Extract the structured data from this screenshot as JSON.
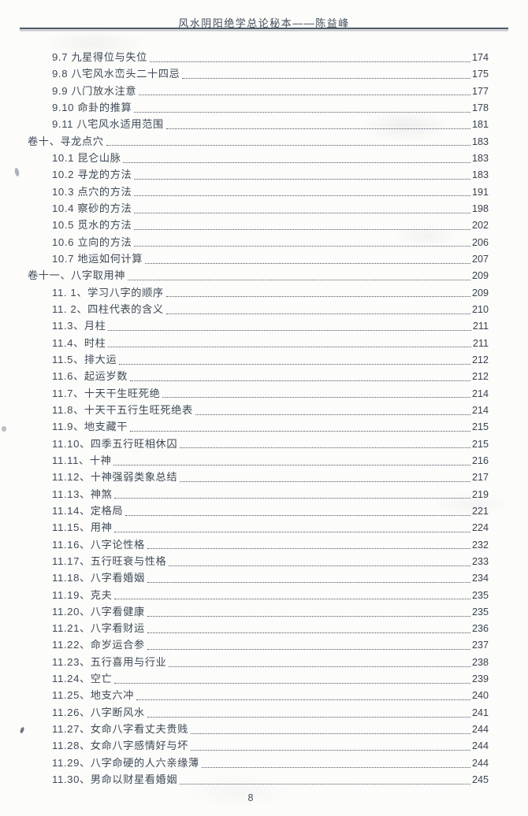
{
  "header": {
    "title": "风水阴阳绝学总论秘本——陈益峰"
  },
  "toc": {
    "entries": [
      {
        "label": "9.7 九星得位与失位",
        "page": "174",
        "level": 2
      },
      {
        "label": "9.8 八宅风水峦头二十四忌",
        "page": "175",
        "level": 2
      },
      {
        "label": "9.9 八门放水注意",
        "page": "177",
        "level": 2
      },
      {
        "label": "9.10 命卦的推算",
        "page": "178",
        "level": 2
      },
      {
        "label": "9.11 八宅风水适用范围",
        "page": "181",
        "level": 2
      },
      {
        "label": "卷十、寻龙点穴",
        "page": "183",
        "level": 1
      },
      {
        "label": "10.1 昆仑山脉",
        "page": "183",
        "level": 2
      },
      {
        "label": "10.2 寻龙的方法",
        "page": "183",
        "level": 2
      },
      {
        "label": "10.3 点穴的方法",
        "page": "191",
        "level": 2
      },
      {
        "label": "10.4 察砂的方法",
        "page": "198",
        "level": 2
      },
      {
        "label": "10.5 觅水的方法",
        "page": "202",
        "level": 2
      },
      {
        "label": "10.6 立向的方法",
        "page": "206",
        "level": 2
      },
      {
        "label": "10.7 地运如何计算",
        "page": "207",
        "level": 2
      },
      {
        "label": "卷十一、八字取用神",
        "page": "209",
        "level": 1
      },
      {
        "label": "11. 1、学习八字的顺序",
        "page": "209",
        "level": 2
      },
      {
        "label": "11. 2、四柱代表的含义",
        "page": "210",
        "level": 2
      },
      {
        "label": "11.3、月柱",
        "page": "211",
        "level": 2
      },
      {
        "label": "11.4、时柱",
        "page": "211",
        "level": 2
      },
      {
        "label": "11.5、排大运",
        "page": "212",
        "level": 2
      },
      {
        "label": "11.6、起运岁数",
        "page": "212",
        "level": 2
      },
      {
        "label": "11.7、十天干生旺死绝",
        "page": "214",
        "level": 2
      },
      {
        "label": "11.8、十天干五行生旺死绝表",
        "page": "214",
        "level": 2
      },
      {
        "label": "11.9、地支藏干",
        "page": "215",
        "level": 2
      },
      {
        "label": "11.10、四季五行旺相休囚",
        "page": "215",
        "level": 2
      },
      {
        "label": "11.11、十神",
        "page": "216",
        "level": 2
      },
      {
        "label": "11.12、十神强弱类象总结",
        "page": "217",
        "level": 2
      },
      {
        "label": "11.13、神煞",
        "page": "219",
        "level": 2
      },
      {
        "label": "11.14、定格局",
        "page": "221",
        "level": 2
      },
      {
        "label": "11.15、用神",
        "page": "224",
        "level": 2
      },
      {
        "label": "11.16、八字论性格",
        "page": "232",
        "level": 2
      },
      {
        "label": "11.17、五行旺衰与性格",
        "page": "233",
        "level": 2
      },
      {
        "label": "11.18、八字看婚姻",
        "page": "234",
        "level": 2
      },
      {
        "label": "11.19、克夫",
        "page": "235",
        "level": 2
      },
      {
        "label": "11.20、八字看健康",
        "page": "235",
        "level": 2
      },
      {
        "label": "11.21、八字看财运",
        "page": "236",
        "level": 2
      },
      {
        "label": "11.22、命岁运合参",
        "page": "237",
        "level": 2
      },
      {
        "label": "11.23、五行喜用与行业",
        "page": "238",
        "level": 2
      },
      {
        "label": "11.24、空亡",
        "page": "239",
        "level": 2
      },
      {
        "label": "11.25、地支六冲",
        "page": "240",
        "level": 2
      },
      {
        "label": "11.26、八字断风水",
        "page": "241",
        "level": 2
      },
      {
        "label": "11.27、女命八字看丈夫贵贱",
        "page": "244",
        "level": 2
      },
      {
        "label": "11.28、女命八字感情好与坏",
        "page": "244",
        "level": 2
      },
      {
        "label": "11.29、八字命硬的人六亲缘薄",
        "page": "244",
        "level": 2
      },
      {
        "label": "11.30、男命以财星看婚姻",
        "page": "245",
        "level": 2
      }
    ]
  },
  "footer": {
    "page_number": "8"
  },
  "colors": {
    "ink": "#3e4a57",
    "rule": "#4e5a66",
    "background": "#fcfcfa"
  }
}
